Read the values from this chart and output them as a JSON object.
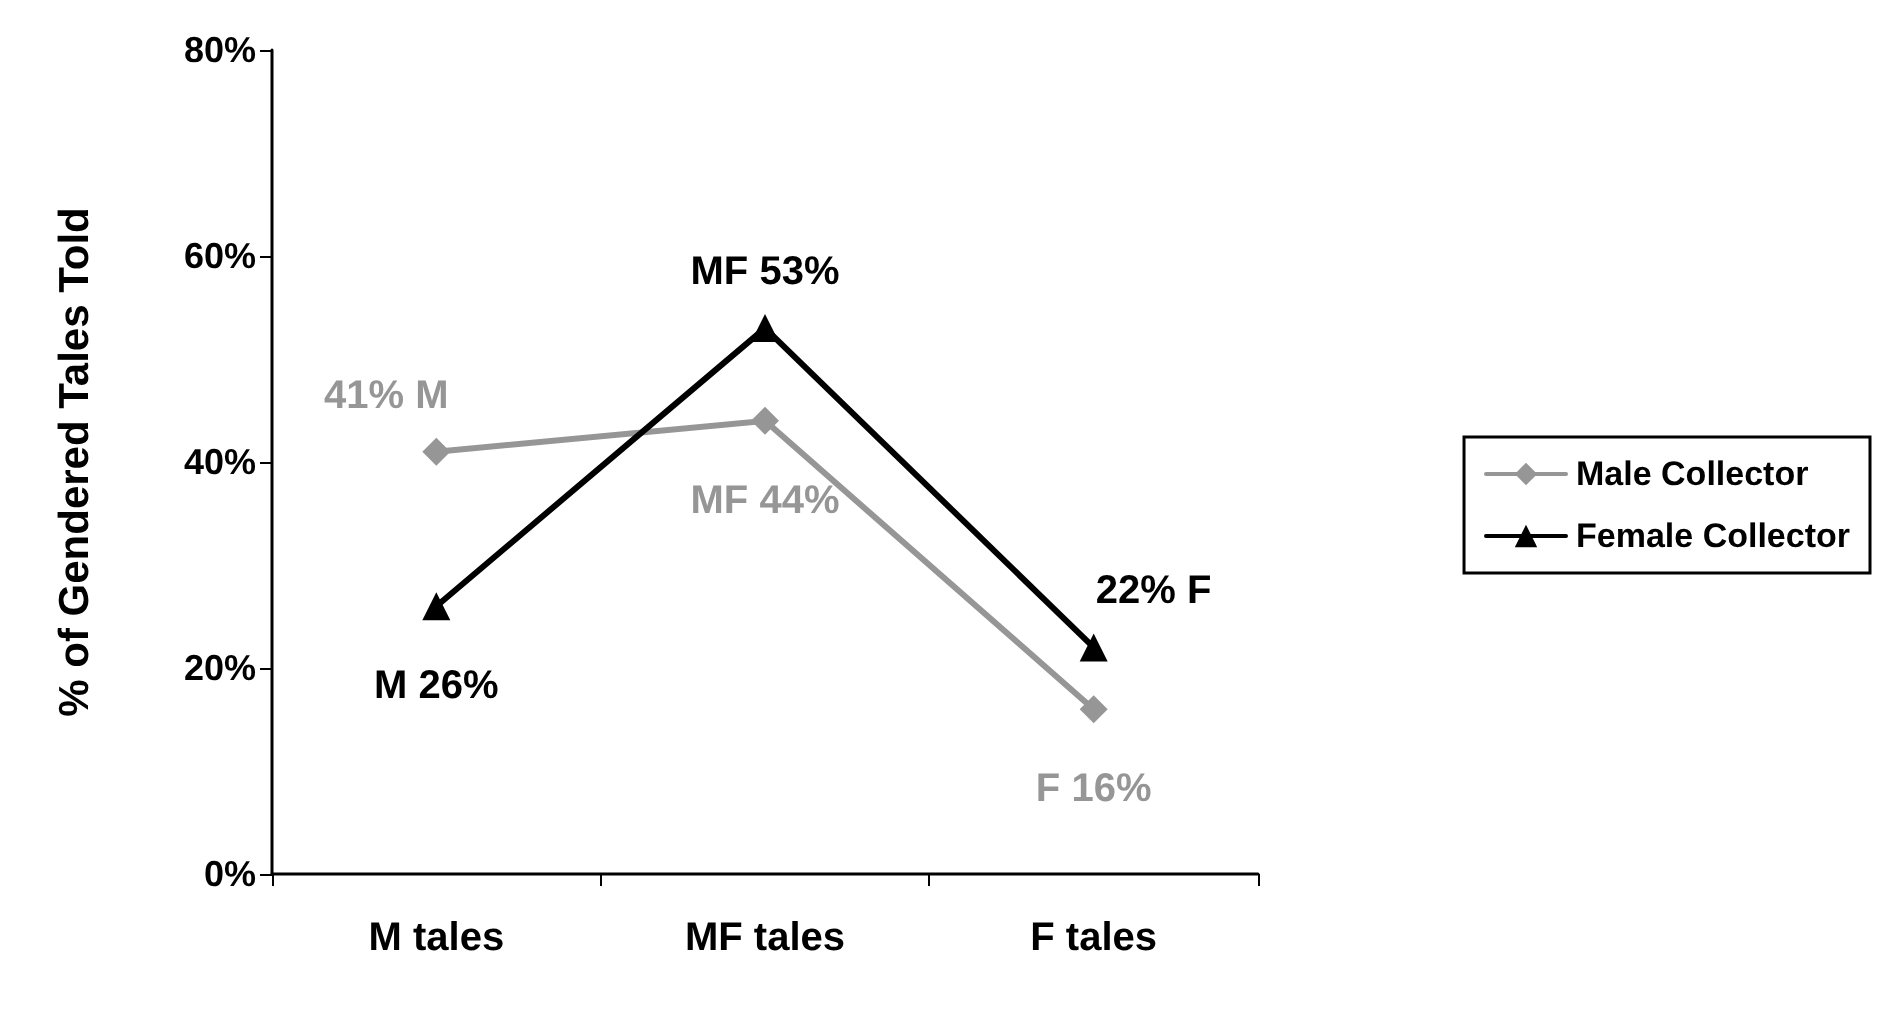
{
  "chart_data": {
    "type": "line",
    "ylabel": "% of Gendered Tales Told",
    "categories": [
      "M tales",
      "MF tales",
      "F tales"
    ],
    "series": [
      {
        "name": "Male Collector",
        "color": "#969696",
        "marker": "diamond",
        "values": [
          41,
          44,
          16
        ],
        "value_labels": [
          "41% M",
          "MF 44%",
          "F 16%"
        ]
      },
      {
        "name": "Female Collector",
        "color": "#000000",
        "marker": "triangle",
        "values": [
          26,
          53,
          22
        ],
        "value_labels": [
          "M 26%",
          "MF 53%",
          "22% F"
        ]
      }
    ],
    "ylim": [
      0,
      80
    ],
    "yticks": [
      {
        "value": 0,
        "label": "0%"
      },
      {
        "value": 20,
        "label": "20%"
      },
      {
        "value": 40,
        "label": "40%"
      },
      {
        "value": 60,
        "label": "60%"
      },
      {
        "value": 80,
        "label": "80%"
      }
    ],
    "grid": false,
    "legend": "right",
    "line_style": "solid"
  }
}
